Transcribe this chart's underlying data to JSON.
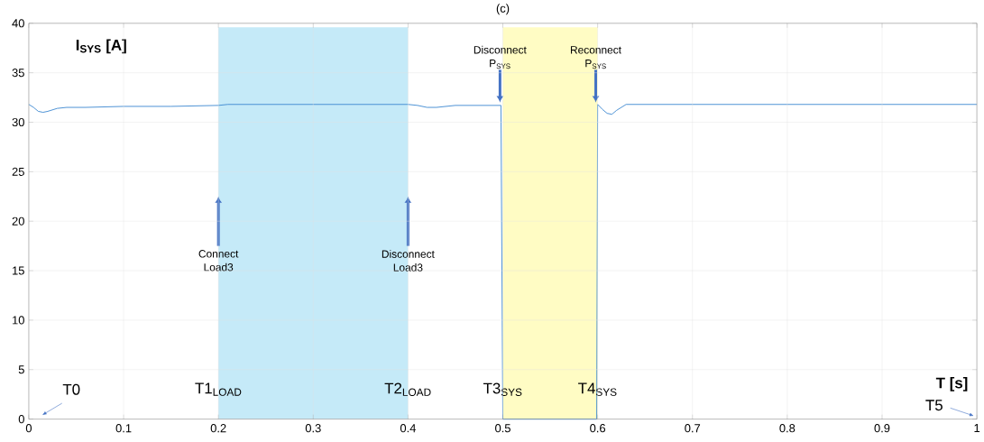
{
  "chart_data": {
    "type": "line",
    "title": "(c)",
    "xlabel": "T [s]",
    "ylabel": "I$_{SYS}$ [A]",
    "x": [
      0,
      0.005,
      0.01,
      0.015,
      0.02,
      0.03,
      0.04,
      0.06,
      0.1,
      0.15,
      0.2,
      0.21,
      0.25,
      0.3,
      0.35,
      0.4,
      0.41,
      0.42,
      0.43,
      0.45,
      0.47,
      0.498,
      0.5,
      0.599,
      0.6,
      0.605,
      0.61,
      0.615,
      0.62,
      0.63,
      0.7,
      0.8,
      0.9,
      1
    ],
    "series": [
      {
        "color": "#3a86d0",
        "values": [
          31.8,
          31.5,
          31.1,
          31.0,
          31.1,
          31.4,
          31.5,
          31.5,
          31.6,
          31.6,
          31.7,
          31.8,
          31.8,
          31.8,
          31.8,
          31.8,
          31.7,
          31.5,
          31.5,
          31.7,
          31.7,
          31.7,
          0,
          0,
          31.8,
          31.3,
          30.9,
          30.8,
          31.2,
          31.8,
          31.8,
          31.8,
          31.8,
          31.8
        ]
      }
    ],
    "xlim": [
      0,
      1
    ],
    "ylim": [
      0,
      40
    ],
    "xticks": [
      0,
      0.1,
      0.2,
      0.3,
      0.4,
      0.5,
      0.6,
      0.7,
      0.8,
      0.9,
      1
    ],
    "yticks": [
      0,
      5,
      10,
      15,
      20,
      25,
      30,
      35,
      40
    ],
    "grid": true,
    "line_style": "solid",
    "marker": "none",
    "bands": [
      {
        "axis": "x",
        "from": 0.2,
        "to": 0.4,
        "color": "#c5eaf8"
      },
      {
        "axis": "x",
        "from": 0.5,
        "to": 0.6,
        "color": "#fffcc4"
      }
    ],
    "annotations": [
      {
        "text": "Connect Load3",
        "x": 0.2,
        "y": 22.5
      },
      {
        "text": "Disconnect Load3",
        "x": 0.4,
        "y": 22.5
      },
      {
        "text": "Disconnect P$_{SYS}$",
        "x": 0.497,
        "y": 32
      },
      {
        "text": "Reconnect P$_{SYS}$",
        "x": 0.598,
        "y": 32
      },
      "T0",
      {
        "text": "T1$_{LOAD}$",
        "x": 0.2,
        "y": 3
      },
      {
        "text": "T2$_{LOAD}$",
        "x": 0.4,
        "y": 3
      },
      {
        "text": "T3$_{SYS}$",
        "x": 0.5,
        "y": 3
      },
      {
        "text": "T4$_{SYS}$",
        "x": 0.6,
        "y": 3
      },
      "T5"
    ]
  }
}
